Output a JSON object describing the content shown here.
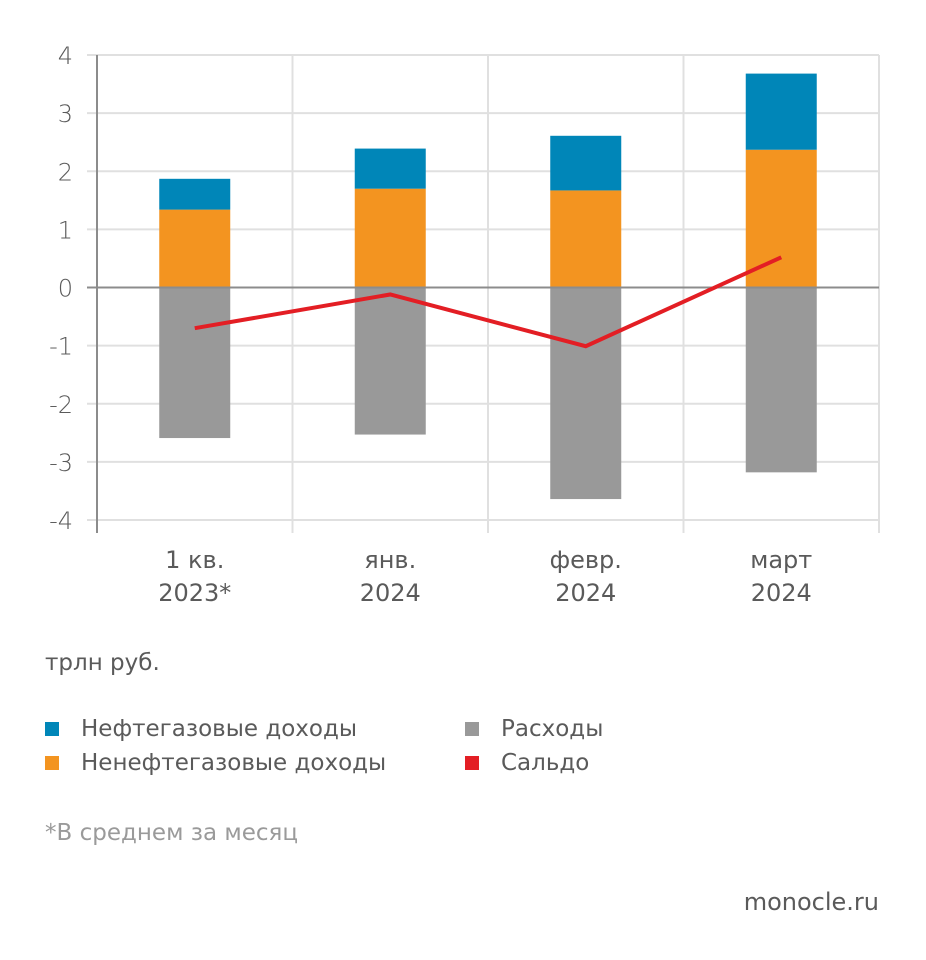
{
  "chart_data": {
    "type": "bar",
    "stacked": true,
    "categories": [
      [
        "1 кв.",
        "2023*"
      ],
      [
        "янв.",
        "2024"
      ],
      [
        "февр.",
        "2024"
      ],
      [
        "март",
        "2024"
      ]
    ],
    "series": [
      {
        "name": "Ненефтегазовые доходы",
        "kind": "bar",
        "color": "#F39420",
        "values": [
          1.34,
          1.7,
          1.67,
          2.37
        ]
      },
      {
        "name": "Нефтегазовые доходы",
        "kind": "bar",
        "color": "#0086B8",
        "values": [
          0.53,
          0.69,
          0.94,
          1.31
        ]
      },
      {
        "name": "Расходы",
        "kind": "bar",
        "color": "#999999",
        "values": [
          -2.59,
          -2.53,
          -3.64,
          -3.18
        ]
      },
      {
        "name": "Сальдо",
        "kind": "line",
        "color": "#E31E24",
        "values": [
          -0.7,
          -0.12,
          -1.01,
          0.52
        ]
      }
    ],
    "yticks": [
      "4",
      "3",
      "2",
      "1",
      "0",
      "-1",
      "-2",
      "-3",
      "-4"
    ],
    "ylim": [
      -4,
      4
    ],
    "ylabel": "трлн руб.",
    "xlabel": "",
    "title": "",
    "grid": true,
    "legend_position": "bottom"
  },
  "unit_label": "трлн руб.",
  "legend": [
    {
      "label": "Нефтегазовые доходы",
      "color": "#0086B8"
    },
    {
      "label": "Ненефтегазовые доходы",
      "color": "#F39420"
    },
    {
      "label": "Расходы",
      "color": "#999999"
    },
    {
      "label": "Сальдо",
      "color": "#E31E24"
    }
  ],
  "footnote": "*В среднем за месяц",
  "brand": "monocle.ru"
}
